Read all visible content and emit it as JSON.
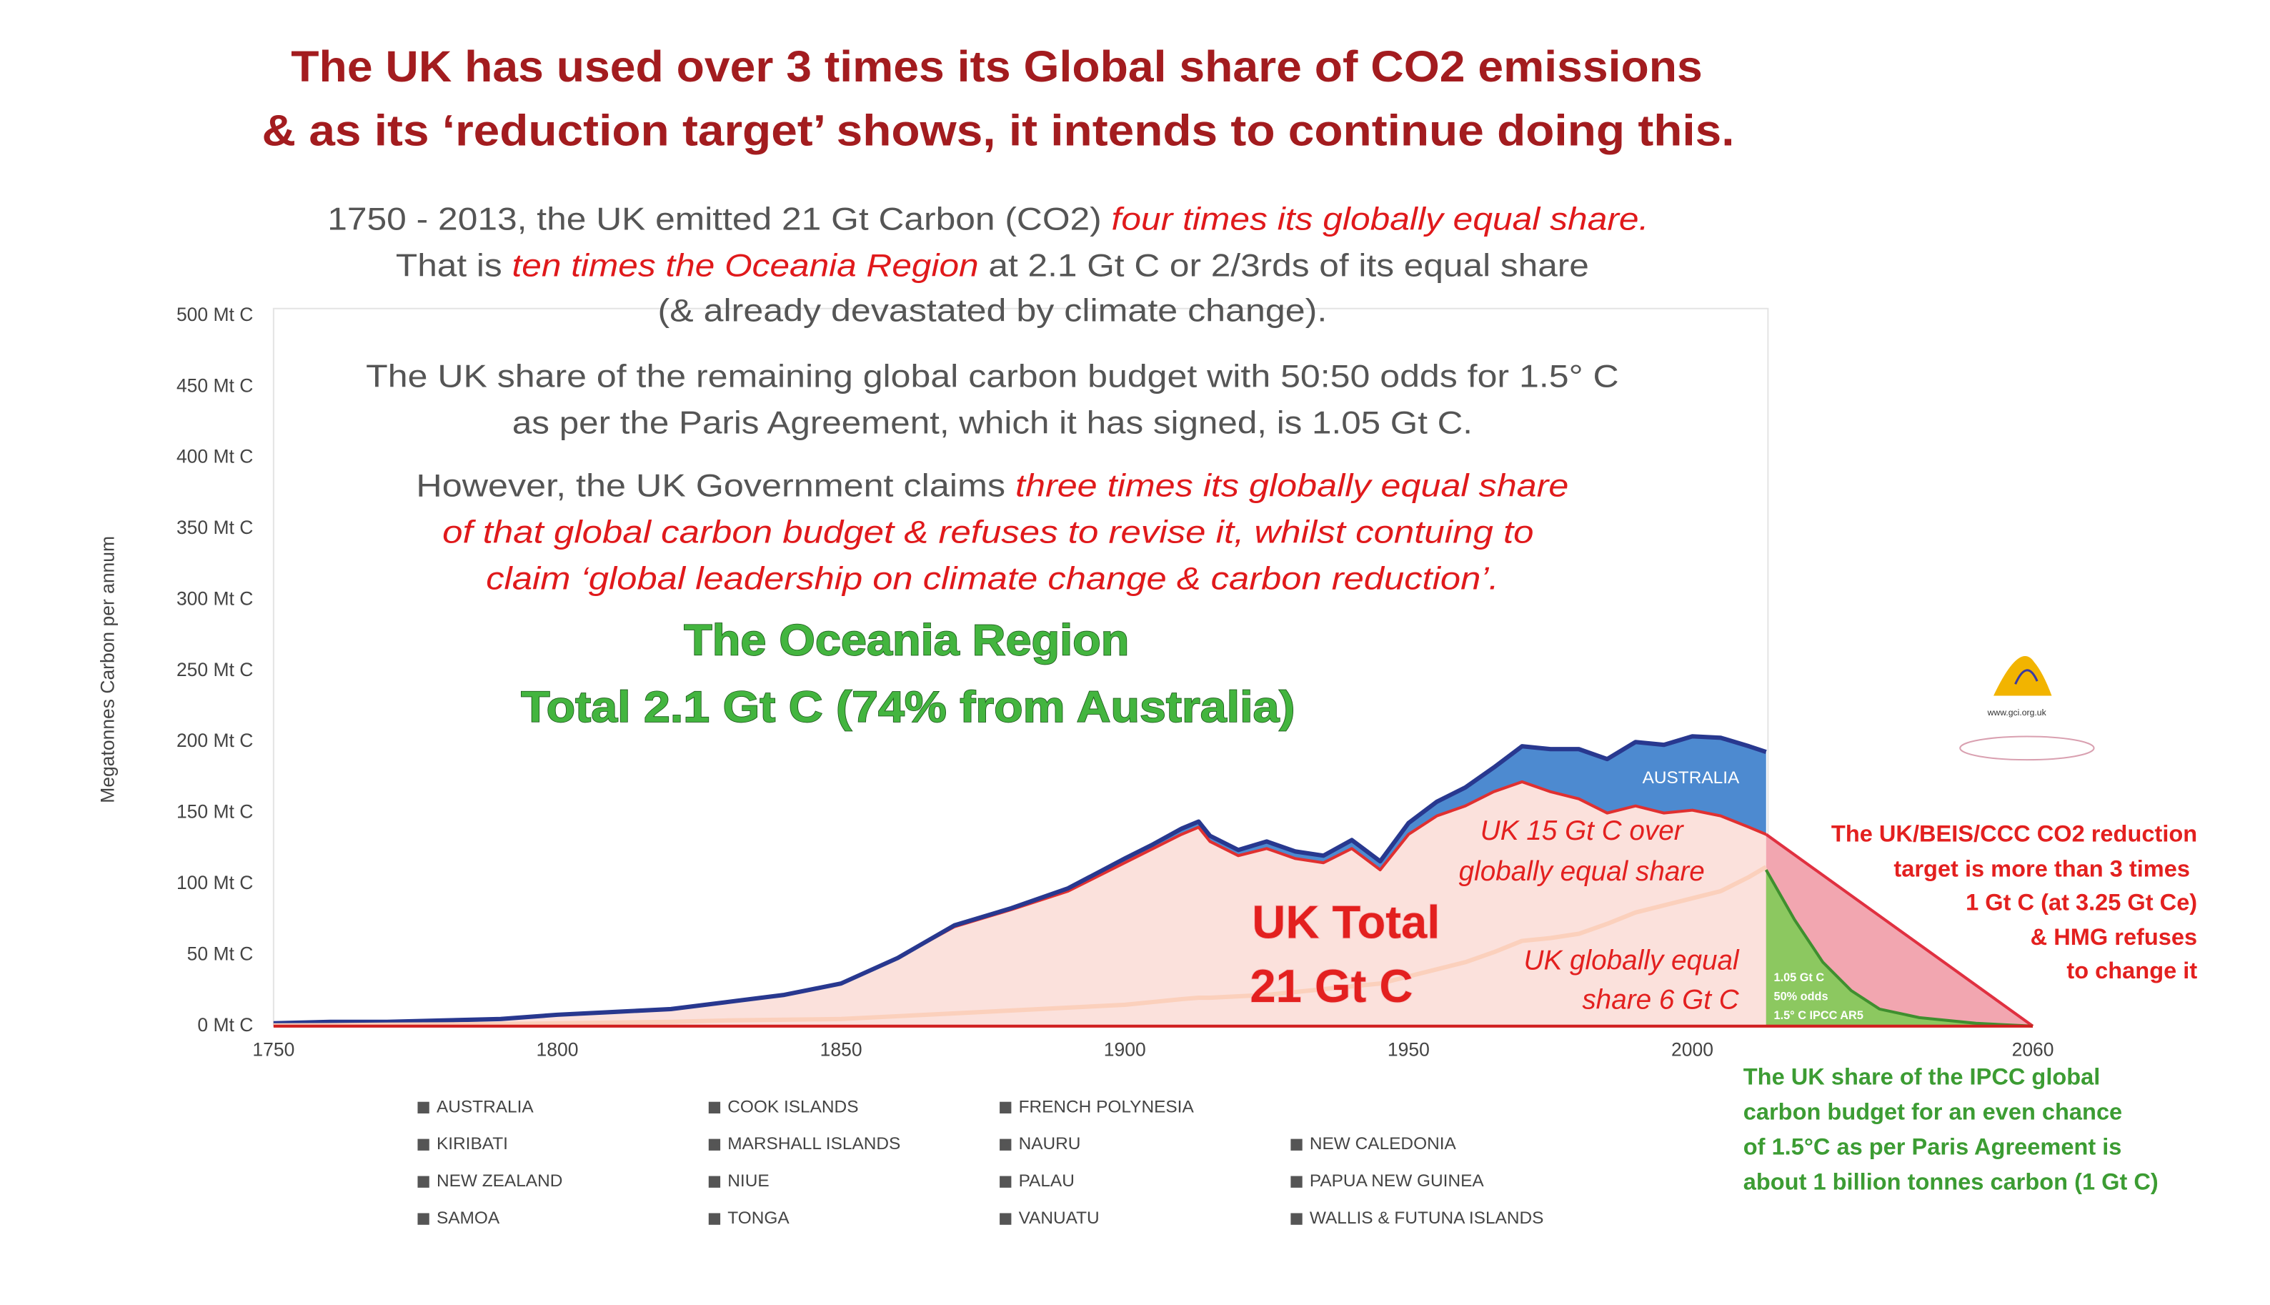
{
  "chart_data": {
    "type": "area",
    "title_lines": [
      "The UK has used over 3 times its Global share of CO2 emissions",
      "& as its ‘reduction target’ shows, it intends to continue doing this."
    ],
    "paragraphs": [
      [
        "1750 - 2013, the UK emitted 21 Gt Carbon (CO2) ",
        "four times its globally equal share."
      ],
      [
        "That is ",
        "ten times the Oceania Region",
        " at 2.1 Gt C or 2/3rds of its equal share"
      ],
      [
        "(& already devastated by climate change)."
      ],
      [
        "The UK share of the remaining global carbon budget with 50:50 odds for 1.5° C"
      ],
      [
        "as per the Paris Agreement, which it has signed, is 1.05 Gt C."
      ],
      [
        "However, the UK Government claims ",
        "three times its globally equal share"
      ],
      [
        "of that global carbon budget & refuses to revise it, whilst contuing to"
      ],
      [
        "claim ‘global leadership on climate change & carbon reduction’."
      ]
    ],
    "oceania_heading": [
      "The Oceania Region",
      "Total 2.1 Gt C (74% from Australia)"
    ],
    "ylabel": "Megatonnes Carbon per annum",
    "annotations": {
      "australia": "AUSTRALIA",
      "uk_over": [
        "UK 15 Gt C over",
        "globally equal share"
      ],
      "uk_total": [
        "UK Total",
        "21 Gt C"
      ],
      "uk_equal": [
        "UK globally equal",
        "share 6 Gt C"
      ],
      "target_note": [
        "The UK/BEIS/CCC CO2 reduction",
        "target is more than 3 times",
        "1 Gt C (at 3.25 Gt Ce)",
        "& HMG refuses",
        "to change it"
      ],
      "ipcc_small": [
        "1.05 Gt C",
        "50% odds",
        "1.5° C IPCC AR5"
      ],
      "ipcc_note": [
        "The UK share of the IPCC global",
        "carbon budget for an even chance",
        "of 1.5°C as per Paris Agreement is",
        "about 1 billion tonnes carbon (1 Gt C)"
      ],
      "logo": "www.gci.org.uk"
    },
    "legend": [
      "AUSTRALIA",
      "COOK ISLANDS",
      "FRENCH POLYNESIA",
      "KIRIBATI",
      "MARSHALL ISLANDS",
      "NAURU",
      "NEW CALEDONIA",
      "NEW ZEALAND",
      "NIUE",
      "PALAU",
      "PAPUA NEW GUINEA",
      "SAMOA",
      "TONGA",
      "VANUATU",
      "WALLIS & FUTUNA ISLANDS"
    ],
    "legend_color": "#555555",
    "x": [
      1750,
      1760,
      1770,
      1780,
      1790,
      1800,
      1810,
      1820,
      1830,
      1840,
      1850,
      1860,
      1870,
      1880,
      1890,
      1900,
      1905,
      1910,
      1913,
      1915,
      1920,
      1925,
      1930,
      1935,
      1940,
      1945,
      1950,
      1955,
      1960,
      1965,
      1970,
      1975,
      1980,
      1985,
      1990,
      1995,
      2000,
      2005,
      2010,
      2013
    ],
    "series": [
      {
        "color": "#e03030",
        "fill": "#fbe1dc",
        "values": [
          2,
          3,
          3,
          4,
          5,
          8,
          10,
          12,
          17,
          22,
          30,
          48,
          70,
          82,
          95,
          115,
          125,
          135,
          140,
          130,
          120,
          125,
          118,
          115,
          125,
          110,
          135,
          148,
          155,
          165,
          172,
          165,
          160,
          150,
          155,
          150,
          152,
          148,
          140,
          135
        ]
      },
      {
        "color": "#28388f",
        "fill": "#4d8ad0",
        "stack": true,
        "values": [
          0,
          0,
          0,
          0,
          0,
          0,
          0,
          0,
          0,
          0,
          0,
          0,
          1,
          1,
          2,
          3,
          3,
          4,
          4,
          4,
          4,
          5,
          5,
          5,
          6,
          6,
          8,
          10,
          13,
          17,
          25,
          30,
          35,
          38,
          45,
          48,
          52,
          55,
          57,
          58
        ]
      },
      {
        "color": "#fbd0bc",
        "values": [
          0.5,
          0.7,
          1,
          1.2,
          1.5,
          2,
          2.5,
          3,
          4,
          4.5,
          5,
          7,
          9,
          11,
          13,
          15,
          17,
          19,
          20,
          20,
          21,
          22,
          24,
          26,
          28,
          30,
          35,
          40,
          45,
          52,
          60,
          62,
          65,
          72,
          80,
          85,
          90,
          95,
          105,
          112
        ]
      },
      {
        "color": "#e03040",
        "fill": "#f2a6b0",
        "x": [
          2013,
          2060
        ],
        "values": [
          135,
          0
        ]
      },
      {
        "color": "#3f8f2f",
        "fill": "#8cc860",
        "x": [
          2013,
          2018,
          2023,
          2028,
          2033,
          2040,
          2050,
          2060
        ],
        "values": [
          110,
          75,
          45,
          25,
          12,
          6,
          2,
          0
        ]
      }
    ],
    "xlim": [
      1750,
      2060
    ],
    "xticks": [
      1750,
      1800,
      1850,
      1900,
      1950,
      2000,
      2060
    ],
    "ylim": [
      0,
      500
    ],
    "yticks": [
      {
        "value": 0,
        "label": "0 Mt C"
      },
      {
        "value": 50,
        "label": "50 Mt C"
      },
      {
        "value": 100,
        "label": "100 Mt C"
      },
      {
        "value": 150,
        "label": "150 Mt C"
      },
      {
        "value": 200,
        "label": "200 Mt C"
      },
      {
        "value": 250,
        "label": "250 Mt C"
      },
      {
        "value": 300,
        "label": "300 Mt C"
      },
      {
        "value": 350,
        "label": "350 Mt C"
      },
      {
        "value": 400,
        "label": "400 Mt C"
      },
      {
        "value": 450,
        "label": "450 Mt C"
      },
      {
        "value": 500,
        "label": "500 Mt C"
      }
    ],
    "grid": false
  }
}
